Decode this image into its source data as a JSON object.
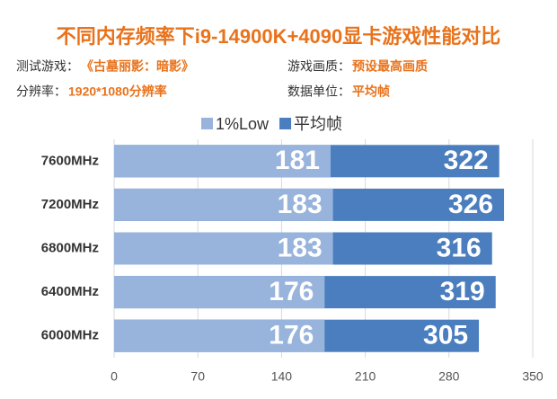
{
  "chart_data": {
    "type": "bar",
    "orientation": "horizontal",
    "bar_mode": "overlap",
    "title": "不同内存频率下i9-14900K+4090显卡游戏性能对比",
    "info": [
      {
        "label": "测试游戏：",
        "value": "《古墓丽影：暗影》"
      },
      {
        "label": "游戏画质：",
        "value": "预设最高画质"
      },
      {
        "label": "分辨率：",
        "value": "1920*1080分辨率"
      },
      {
        "label": "数据单位：",
        "value": "平均帧"
      }
    ],
    "categories": [
      "7600MHz",
      "7200MHz",
      "6800MHz",
      "6400MHz",
      "6000MHz"
    ],
    "series": [
      {
        "name": "1%Low",
        "color": "#98b4dc",
        "values": [
          181,
          183,
          183,
          176,
          176
        ]
      },
      {
        "name": "平均帧",
        "color": "#4a7ebf",
        "values": [
          322,
          326,
          316,
          319,
          305
        ]
      }
    ],
    "xlim": [
      0,
      350
    ],
    "xticks": [
      0,
      70,
      140,
      210,
      280,
      350
    ],
    "grid": true,
    "legend": "top"
  }
}
